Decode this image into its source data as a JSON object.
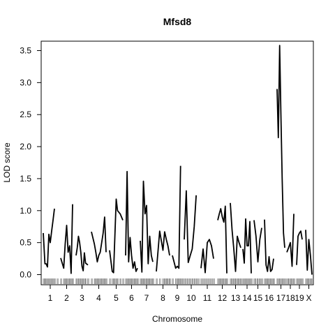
{
  "chart_data": {
    "type": "line",
    "title": "Mfsd8",
    "xlabel": "Chromosome",
    "ylabel": "LOD score",
    "ylim": [
      -0.1,
      3.84
    ],
    "yticks": [
      0.0,
      0.5,
      1.0,
      1.5,
      2.0,
      2.5,
      3.0,
      3.5
    ],
    "ytick_labels": [
      "0.0",
      "0.5",
      "1.0",
      "1.5",
      "2.0",
      "2.5",
      "3.0",
      "3.5"
    ],
    "grid": false,
    "line_color": "#000000",
    "chromosomes": [
      {
        "label": "1",
        "x": [
          1.0,
          1.6,
          2.0,
          2.5,
          3.0,
          3.5,
          4.0,
          4.5,
          5.0,
          6.0
        ],
        "y": [
          0.65,
          0.17,
          0.17,
          0.12,
          0.63,
          0.5,
          0.68,
          0.85,
          1.03,
          null
        ]
      },
      {
        "label": "2",
        "x": [
          1.0,
          2.0,
          2.5,
          3.0,
          3.5,
          4.0,
          4.5,
          5.0
        ],
        "y": [
          0.26,
          0.1,
          0.48,
          0.77,
          0.35,
          0.45,
          0.02,
          1.1
        ]
      },
      {
        "label": "3",
        "x": [
          1.0,
          1.5,
          2.0,
          2.5,
          3.0,
          3.5,
          4.0,
          4.5,
          5.0,
          6.0
        ],
        "y": [
          0.3,
          0.42,
          0.6,
          0.5,
          0.35,
          0.13,
          0.06,
          0.34,
          0.18,
          0.15
        ]
      },
      {
        "label": "4",
        "x": [
          1.0,
          2.0,
          2.5,
          3.0,
          3.5,
          4.0,
          4.5,
          5.0,
          5.5,
          6.0
        ],
        "y": [
          0.67,
          0.48,
          0.35,
          0.2,
          0.3,
          0.35,
          0.5,
          0.65,
          0.9,
          0.35
        ]
      },
      {
        "label": "5",
        "x": [
          1.0,
          2.0,
          2.5,
          3.0,
          3.5,
          4.0,
          5.0,
          6.0
        ],
        "y": [
          0.38,
          0.05,
          0.03,
          0.6,
          1.18,
          1.0,
          0.95,
          0.85
        ]
      },
      {
        "label": "6",
        "x": [
          1.0,
          1.5,
          2.0,
          2.5,
          3.0,
          3.5,
          4.0,
          4.5,
          5.0
        ],
        "y": [
          0.3,
          1.61,
          0.2,
          0.58,
          0.3,
          0.1,
          0.2,
          0.05,
          0.1
        ]
      },
      {
        "label": "7",
        "x": [
          1.0,
          1.5,
          2.0,
          2.5,
          3.0,
          3.5,
          4.0,
          4.5,
          5.0
        ],
        "y": [
          0.53,
          0.04,
          1.46,
          0.95,
          1.08,
          0.17,
          0.6,
          0.3,
          0.2
        ]
      },
      {
        "label": "8",
        "x": [
          1.0,
          2.0,
          3.0,
          3.5,
          4.0,
          4.5,
          5.0
        ],
        "y": [
          0.05,
          0.68,
          0.38,
          0.67,
          0.55,
          0.45,
          0.3
        ]
      },
      {
        "label": "9",
        "x": [
          1.0,
          2.0,
          2.5,
          3.0,
          3.5,
          4.0
        ],
        "y": [
          0.3,
          0.1,
          0.13,
          0.1,
          1.7,
          null
        ]
      },
      {
        "label": "10",
        "x": [
          1.0,
          1.5,
          2.0,
          2.5,
          3.0,
          3.5,
          4.0,
          4.5
        ],
        "y": [
          0.55,
          1.31,
          0.19,
          0.3,
          0.4,
          0.75,
          1.24,
          null
        ]
      },
      {
        "label": "11",
        "x": [
          1.0,
          1.5,
          2.0,
          2.5,
          3.0,
          3.5,
          4.0
        ],
        "y": [
          0.1,
          0.4,
          0.03,
          0.5,
          0.55,
          0.45,
          0.25
        ]
      },
      {
        "label": "12",
        "x": [
          1.0,
          1.5,
          2.0,
          2.5,
          3.0,
          3.5,
          4.0
        ],
        "y": [
          0.85,
          0.95,
          1.03,
          0.9,
          0.82,
          1.07,
          0.02
        ]
      },
      {
        "label": "13",
        "x": [
          1.0,
          1.5,
          2.0,
          2.5,
          3.0,
          3.5,
          4.0
        ],
        "y": [
          1.12,
          0.7,
          0.4,
          0.05,
          0.6,
          0.5,
          0.42
        ]
      },
      {
        "label": "14",
        "x": [
          1.0,
          1.5,
          2.0,
          2.5,
          3.0,
          3.5,
          4.0
        ],
        "y": [
          0.4,
          0.18,
          0.87,
          0.45,
          0.45,
          0.83,
          0.02
        ]
      },
      {
        "label": "15",
        "x": [
          1.0,
          1.5,
          2.0,
          2.5,
          3.0
        ],
        "y": [
          0.85,
          0.6,
          0.2,
          0.55,
          0.73
        ]
      },
      {
        "label": "16",
        "x": [
          1.0,
          1.5,
          2.0,
          2.5,
          3.0,
          3.5,
          4.0
        ],
        "y": [
          0.86,
          0.15,
          0.05,
          0.28,
          0.05,
          0.08,
          0.25
        ]
      },
      {
        "label": "17",
        "x": [
          1.0,
          1.5,
          2.0,
          2.5,
          3.0,
          3.5,
          4.0
        ],
        "y": [
          2.9,
          2.14,
          3.58,
          2.5,
          1.5,
          0.65,
          0.42
        ]
      },
      {
        "label": "18",
        "x": [
          1.0,
          1.5,
          2.0,
          2.5,
          3.0
        ],
        "y": [
          0.35,
          0.42,
          0.5,
          0.13,
          0.95
        ]
      },
      {
        "label": "19",
        "x": [
          1.0,
          1.5,
          2.0,
          2.5,
          3.0
        ],
        "y": [
          0.15,
          0.6,
          0.65,
          0.68,
          0.55
        ]
      },
      {
        "label": "X",
        "x": [
          1.0,
          1.5,
          2.0,
          2.5,
          3.0
        ],
        "y": [
          0.7,
          0.07,
          0.55,
          0.3,
          0.0
        ]
      }
    ]
  }
}
